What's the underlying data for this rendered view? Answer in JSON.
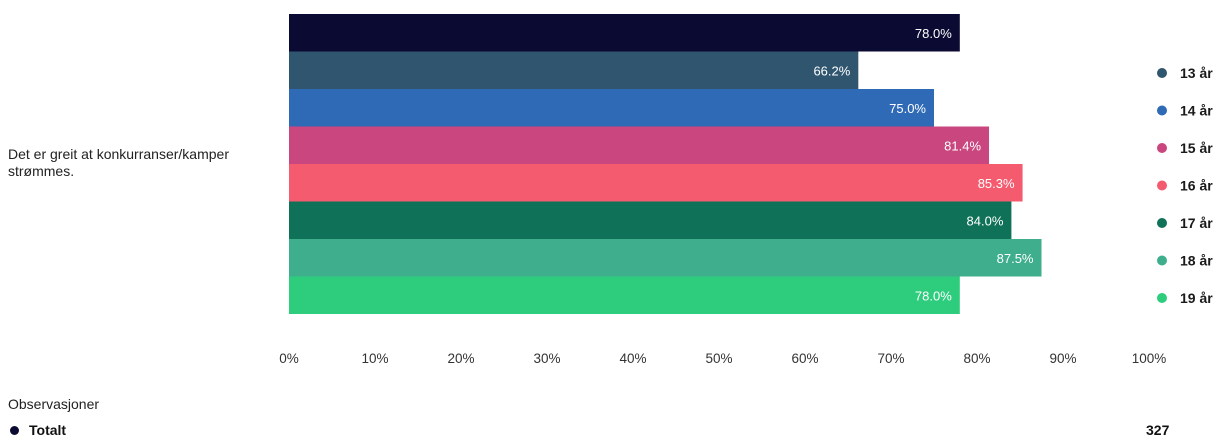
{
  "chart_data": {
    "type": "bar",
    "orientation": "horizontal",
    "category": "Det er greit at konkurranser/kamper strømmes.",
    "series": [
      {
        "name": "Totalt",
        "value": 78.0,
        "label": "78.0%",
        "color": "#0b0a33"
      },
      {
        "name": "13 år",
        "value": 66.2,
        "label": "66.2%",
        "color": "#30566f"
      },
      {
        "name": "14 år",
        "value": 75.0,
        "label": "75.0%",
        "color": "#2f6ab6"
      },
      {
        "name": "15 år",
        "value": 81.4,
        "label": "81.4%",
        "color": "#c9467f"
      },
      {
        "name": "16 år",
        "value": 85.3,
        "label": "85.3%",
        "color": "#f55b6f"
      },
      {
        "name": "17 år",
        "value": 84.0,
        "label": "84.0%",
        "color": "#0f7258"
      },
      {
        "name": "18 år",
        "value": 87.5,
        "label": "87.5%",
        "color": "#3fae8d"
      },
      {
        "name": "19 år",
        "value": 78.0,
        "label": "78.0%",
        "color": "#2dcd7d"
      }
    ],
    "xlim": [
      0,
      100
    ],
    "x_ticks": [
      "0%",
      "10%",
      "20%",
      "30%",
      "40%",
      "50%",
      "60%",
      "70%",
      "80%",
      "90%",
      "100%"
    ],
    "legend": [
      {
        "name": "13 år",
        "color": "#30566f"
      },
      {
        "name": "14 år",
        "color": "#2f6ab6"
      },
      {
        "name": "15 år",
        "color": "#c9467f"
      },
      {
        "name": "16 år",
        "color": "#f55b6f"
      },
      {
        "name": "17 år",
        "color": "#0f7258"
      },
      {
        "name": "18 år",
        "color": "#3fae8d"
      },
      {
        "name": "19 år",
        "color": "#2dcd7d"
      }
    ],
    "legend_position": "right"
  },
  "observations": {
    "title": "Observasjoner",
    "rows": [
      {
        "label": "Totalt",
        "value": "327"
      }
    ]
  }
}
